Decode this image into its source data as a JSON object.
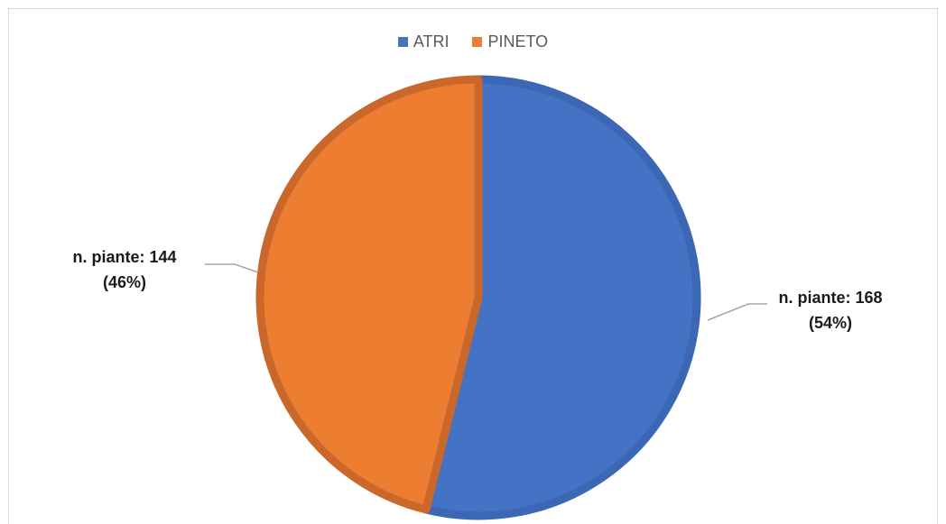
{
  "chart_data": {
    "type": "pie",
    "series": [
      {
        "name": "ATRI",
        "value": 168,
        "label_line1": "n. piante: 168",
        "label_line2": "(54%)",
        "color": "#4472c4",
        "edge": "#3c67b4"
      },
      {
        "name": "PINETO",
        "value": 144,
        "label_line1": "n. piante: 144",
        "label_line2": "(46%)",
        "color": "#ed7d31",
        "edge": "#c9682a"
      }
    ],
    "legend_position": "top",
    "start_angle": "top",
    "direction": "clockwise"
  },
  "colors": {
    "background": "#ffffff",
    "border": "#d9d9d9",
    "leader_line": "#a6a6a6",
    "text": "#595959"
  }
}
